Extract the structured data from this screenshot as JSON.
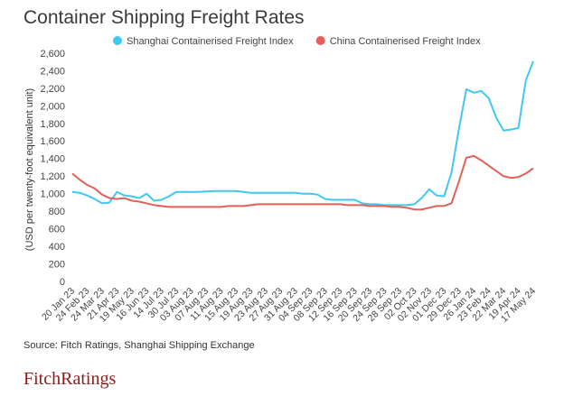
{
  "chart_data": {
    "type": "line",
    "title": "Container Shipping Freight Rates",
    "y_label": "(USD per twenty-foot equivalent unit)",
    "source": "Source: Fitch Ratings, Shanghai Shipping Exchange",
    "logo": "FitchRatings",
    "categories": [
      "20 Jan 23",
      null,
      "24 Feb 23",
      null,
      "24 Mar 23",
      null,
      "21 Apr 23",
      null,
      "19 May 23",
      null,
      "16 Jun 23",
      null,
      "14 Jul 23",
      null,
      "30 Jul 23",
      null,
      "03 Aug 23",
      null,
      "07 Aug 23",
      null,
      "11 Aug 23",
      null,
      "15 Aug 23",
      null,
      "19 Aug 23",
      null,
      "23 Aug 23",
      null,
      "27 Aug 23",
      null,
      "31 Aug 23",
      null,
      "04 Sep 23",
      null,
      "08 Sep 23",
      null,
      "12 Sep 23",
      null,
      "16 Sep 23",
      null,
      "20 Sep 23",
      null,
      "24 Sep 23",
      null,
      "28 Sep 23",
      null,
      "02 Oct 23",
      null,
      "02 Nov 23",
      null,
      "01 Dec 23",
      null,
      "29 Dec 23",
      null,
      "26 Jan 24",
      null,
      "23 Feb 24",
      null,
      "22 Mar 24",
      null,
      "19 Apr 24",
      null,
      "17 May 24"
    ],
    "series": [
      {
        "name": "Shanghai Containerised Freight Index",
        "color": "#3fc8f0",
        "values": [
          1030,
          1020,
          990,
          950,
          900,
          910,
          1030,
          990,
          980,
          960,
          1010,
          930,
          940,
          980,
          1030,
          1030,
          1030,
          1030,
          1035,
          1040,
          1040,
          1040,
          1040,
          1030,
          1020,
          1020,
          1020,
          1020,
          1020,
          1020,
          1020,
          1010,
          1010,
          1000,
          950,
          940,
          940,
          940,
          940,
          900,
          890,
          890,
          880,
          880,
          880,
          880,
          890,
          960,
          1060,
          990,
          980,
          1250,
          1750,
          2200,
          2160,
          2180,
          2100,
          1880,
          1730,
          1740,
          1760,
          2300,
          2520
        ]
      },
      {
        "name": "China Containerised Freight Index",
        "color": "#e0605a",
        "values": [
          1240,
          1170,
          1110,
          1070,
          1000,
          960,
          950,
          960,
          930,
          920,
          900,
          880,
          870,
          860,
          860,
          860,
          860,
          860,
          860,
          860,
          860,
          870,
          870,
          870,
          880,
          890,
          890,
          890,
          890,
          890,
          890,
          890,
          890,
          890,
          890,
          890,
          890,
          880,
          880,
          880,
          870,
          870,
          870,
          860,
          860,
          850,
          830,
          830,
          850,
          870,
          870,
          900,
          1150,
          1420,
          1440,
          1390,
          1330,
          1270,
          1210,
          1190,
          1200,
          1240,
          1300
        ]
      }
    ],
    "ylim": [
      0,
      2600
    ],
    "yticks": [
      0,
      200,
      400,
      600,
      800,
      {
        "value": 1000,
        "label": "1,000"
      },
      {
        "value": 1200,
        "label": "1,200"
      },
      {
        "value": 1400,
        "label": "1,400"
      },
      {
        "value": 1600,
        "label": "1,600"
      },
      {
        "value": 1800,
        "label": "1,800"
      },
      {
        "value": 2000,
        "label": "2,000"
      },
      {
        "value": 2200,
        "label": "2,200"
      },
      {
        "value": 2400,
        "label": "2,400"
      },
      {
        "value": 2600,
        "label": "2,600"
      }
    ],
    "grid": false,
    "legend": "top"
  }
}
